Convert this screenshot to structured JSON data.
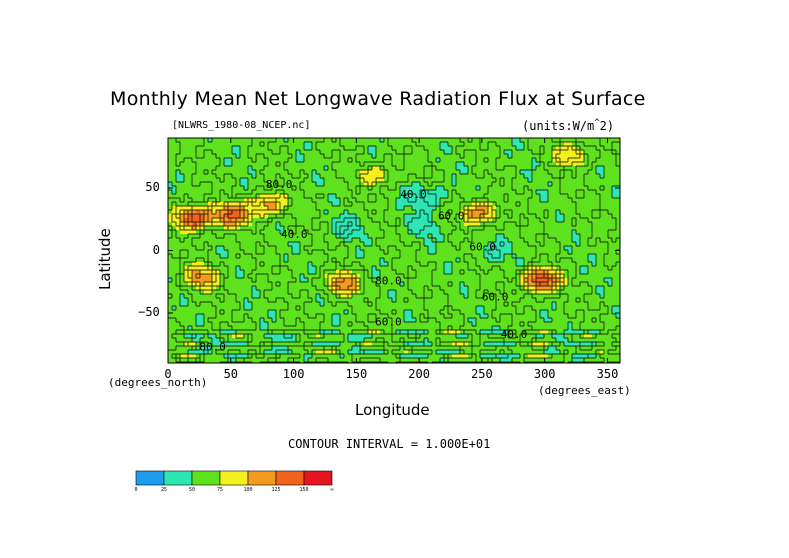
{
  "title": "Monthly Mean Net Longwave Radiation Flux at Surface",
  "subtitle_left": "[NLWRS_1980-08_NCEP.nc]",
  "subtitle_right": "(units:W/m^2)",
  "x_axis_unit": "(degrees_north)",
  "y_axis_unit": "(degrees_east)",
  "contour_interval_text": "CONTOUR INTERVAL = 1.000E+01",
  "colorbar": {
    "colors": [
      "#1e9cf0",
      "#2ee6b2",
      "#5ee21e",
      "#f4f01e",
      "#f49a1e",
      "#f0641e",
      "#e6141e"
    ],
    "tick_labels": [
      "0",
      "25",
      "50",
      "75",
      "100",
      "125",
      "150",
      "∞"
    ]
  },
  "chart_data": {
    "type": "heatmap",
    "title": "Monthly Mean Net Longwave Radiation Flux at Surface",
    "xlabel": "Longitude",
    "ylabel": "Latitude",
    "xlim": [
      0,
      360
    ],
    "ylim": [
      -90,
      90
    ],
    "x_ticks": [
      0,
      50,
      100,
      150,
      200,
      250,
      300,
      350
    ],
    "y_ticks": [
      50,
      0,
      -50
    ],
    "contour_labels": [
      {
        "text": "80.0",
        "lon": 78,
        "lat": 50
      },
      {
        "text": "40.0",
        "lon": 185,
        "lat": 42
      },
      {
        "text": "60.0",
        "lon": 215,
        "lat": 25
      },
      {
        "text": "40.0",
        "lon": 90,
        "lat": 10
      },
      {
        "text": "60.0",
        "lon": 240,
        "lat": 0
      },
      {
        "text": "80.0",
        "lon": 165,
        "lat": -27
      },
      {
        "text": "60.0",
        "lon": 250,
        "lat": -40
      },
      {
        "text": "60.0",
        "lon": 165,
        "lat": -60
      },
      {
        "text": "40.0",
        "lon": 265,
        "lat": -70
      },
      {
        "text": "80.0",
        "lon": 25,
        "lat": -80
      }
    ],
    "features": [
      {
        "kind": "high",
        "lon": 20,
        "lat": 28,
        "value": 150
      },
      {
        "kind": "high",
        "lon": 50,
        "lat": 30,
        "value": 130
      },
      {
        "kind": "high",
        "lon": 78,
        "lat": 38,
        "value": 110
      },
      {
        "kind": "high",
        "lon": 25,
        "lat": -20,
        "value": 110
      },
      {
        "kind": "high",
        "lon": 138,
        "lat": -25,
        "value": 115
      },
      {
        "kind": "high",
        "lon": 247,
        "lat": 32,
        "value": 120
      },
      {
        "kind": "high",
        "lon": 295,
        "lat": -22,
        "value": 150
      },
      {
        "kind": "high",
        "lon": 320,
        "lat": 78,
        "value": 100
      },
      {
        "kind": "high",
        "lon": 165,
        "lat": 62,
        "value": 90
      },
      {
        "kind": "low",
        "lon": 140,
        "lat": 20,
        "value": 35
      },
      {
        "kind": "low",
        "lon": 205,
        "lat": 45,
        "value": 30
      },
      {
        "kind": "low",
        "lon": 200,
        "lat": 22,
        "value": 38
      },
      {
        "kind": "low",
        "lon": 255,
        "lat": 0,
        "value": 40
      }
    ]
  }
}
